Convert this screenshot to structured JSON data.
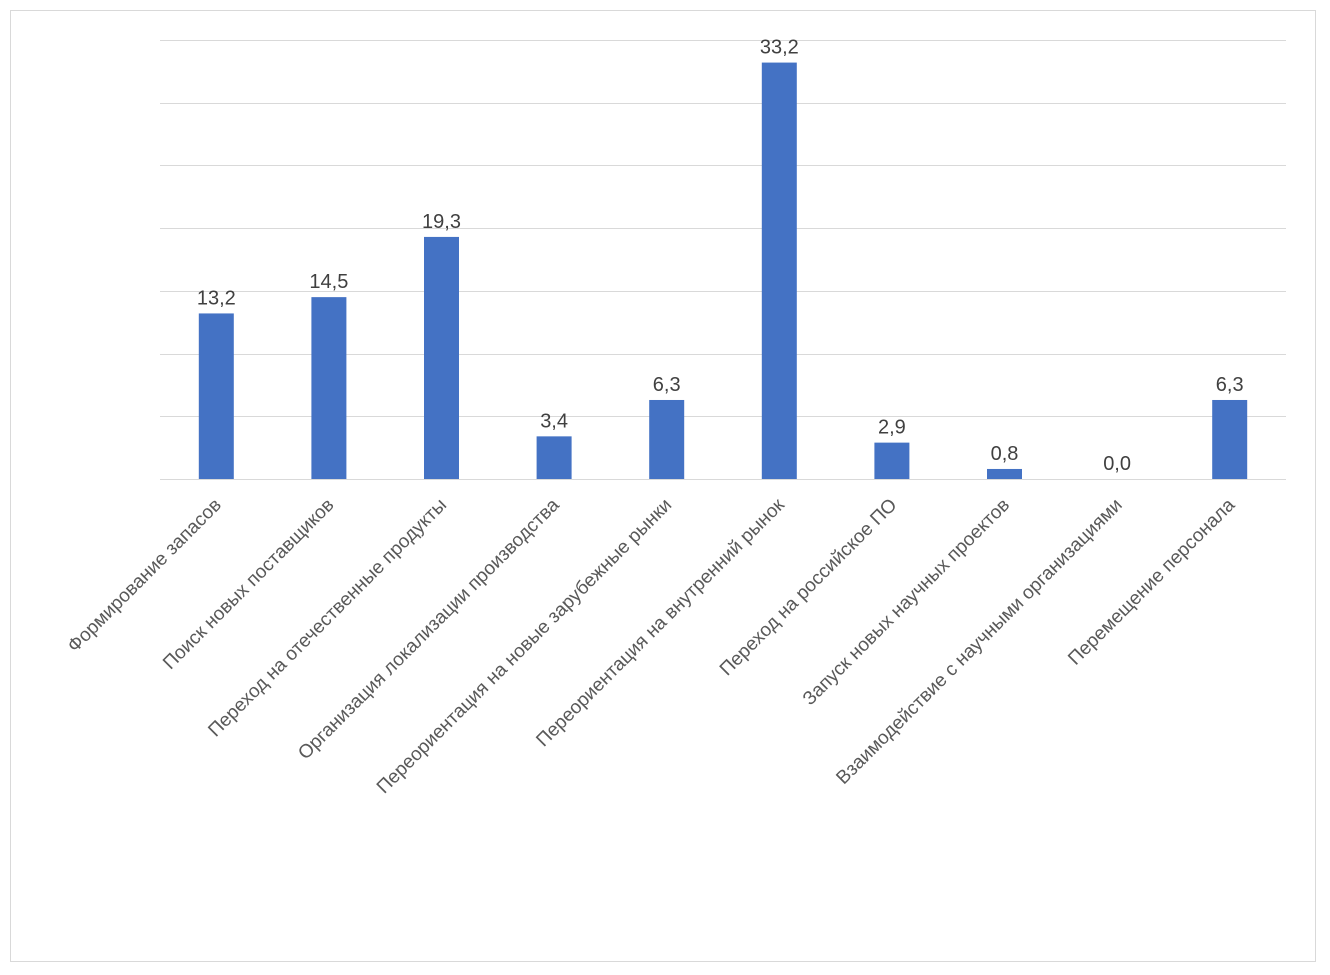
{
  "chart_data": {
    "type": "bar",
    "title": "",
    "xlabel": "",
    "ylabel": "",
    "ylim": [
      0,
      35
    ],
    "y_gridline_step": 5,
    "y_axis_labels_visible": false,
    "grid": true,
    "legend": "none",
    "bar_color": "#4472c4",
    "categories": [
      "Формирование запасов",
      "Поиск новых поставщиков",
      "Переход на отечественные продукты",
      "Организация локализации производства",
      "Переориентация на новые зарубежные рынки",
      "Переориентация на внутренний рынок",
      "Переход на российское ПО",
      "Запуск новых научных проектов",
      "Взаимодействие с научными организациями",
      "Перемещение персонала"
    ],
    "values": [
      13.2,
      14.5,
      19.3,
      3.4,
      6.3,
      33.2,
      2.9,
      0.8,
      0.0,
      6.3
    ],
    "value_labels": [
      "13,2",
      "14,5",
      "19,3",
      "3,4",
      "6,3",
      "33,2",
      "2,9",
      "0,8",
      "0,0",
      "6,3"
    ]
  }
}
